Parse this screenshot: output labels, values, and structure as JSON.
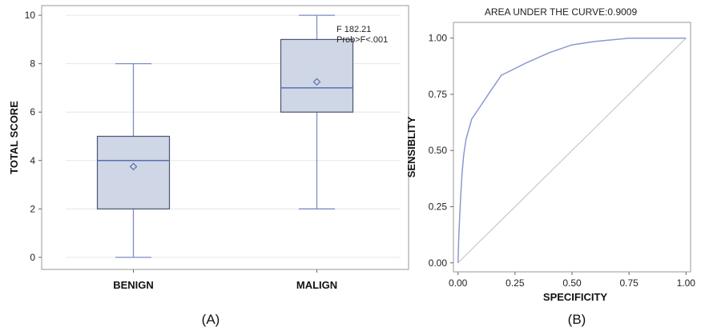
{
  "colors": {
    "box_fill": "#cfd6e6",
    "box_stroke": "#4a5573",
    "median": "#5a6fb0",
    "whisker": "#7e8ec5",
    "mean_marker": "#5a6fb0",
    "roc_line": "#8a9ad0",
    "diagonal": "#c8c8c8",
    "grid": "#e6e6e6",
    "frame": "#999999"
  },
  "chart_data": [
    {
      "type": "box",
      "panel_label": "(A)",
      "ylabel": "TOTAL SCORE",
      "xlabel": "",
      "ylim": [
        -0.5,
        10.4
      ],
      "yticks": [
        0,
        2,
        4,
        6,
        8,
        10
      ],
      "categories": [
        "BENIGN",
        "MALIGN"
      ],
      "boxes": [
        {
          "name": "BENIGN",
          "min": 0,
          "q1": 2,
          "median": 4,
          "q3": 5,
          "max": 8,
          "mean": 3.75
        },
        {
          "name": "MALIGN",
          "min": 2,
          "q1": 6,
          "median": 7,
          "q3": 9,
          "max": 10,
          "mean": 7.25
        }
      ],
      "annotations": [
        "F 182.21",
        "Prob>F<.001"
      ],
      "grid": true
    },
    {
      "type": "line",
      "panel_label": "(B)",
      "title": "AREA UNDER THE CURVE:0.9009",
      "xlabel": "SPECIFICITY",
      "ylabel": "SENSIBLITY",
      "xlim": [
        -0.02,
        1.02
      ],
      "ylim": [
        -0.04,
        1.07
      ],
      "xticks": [
        "0.00",
        "0.25",
        "0.50",
        "0.75",
        "1.00"
      ],
      "yticks": [
        "0.00",
        "0.25",
        "0.50",
        "0.75",
        "1.00"
      ],
      "series": [
        {
          "x": [
            0,
            0.003,
            0.007,
            0.012,
            0.018,
            0.025,
            0.035,
            0.06,
            0.1,
            0.14,
            0.19,
            0.3,
            0.4,
            0.5,
            0.6,
            0.75,
            1.0
          ],
          "y": [
            0,
            0.1,
            0.2,
            0.3,
            0.4,
            0.48,
            0.55,
            0.64,
            0.7,
            0.76,
            0.835,
            0.89,
            0.935,
            0.97,
            0.985,
            1.0,
            1.0
          ]
        }
      ],
      "reference_line": {
        "x": [
          0,
          1
        ],
        "y": [
          0,
          1
        ]
      },
      "grid": false
    }
  ]
}
